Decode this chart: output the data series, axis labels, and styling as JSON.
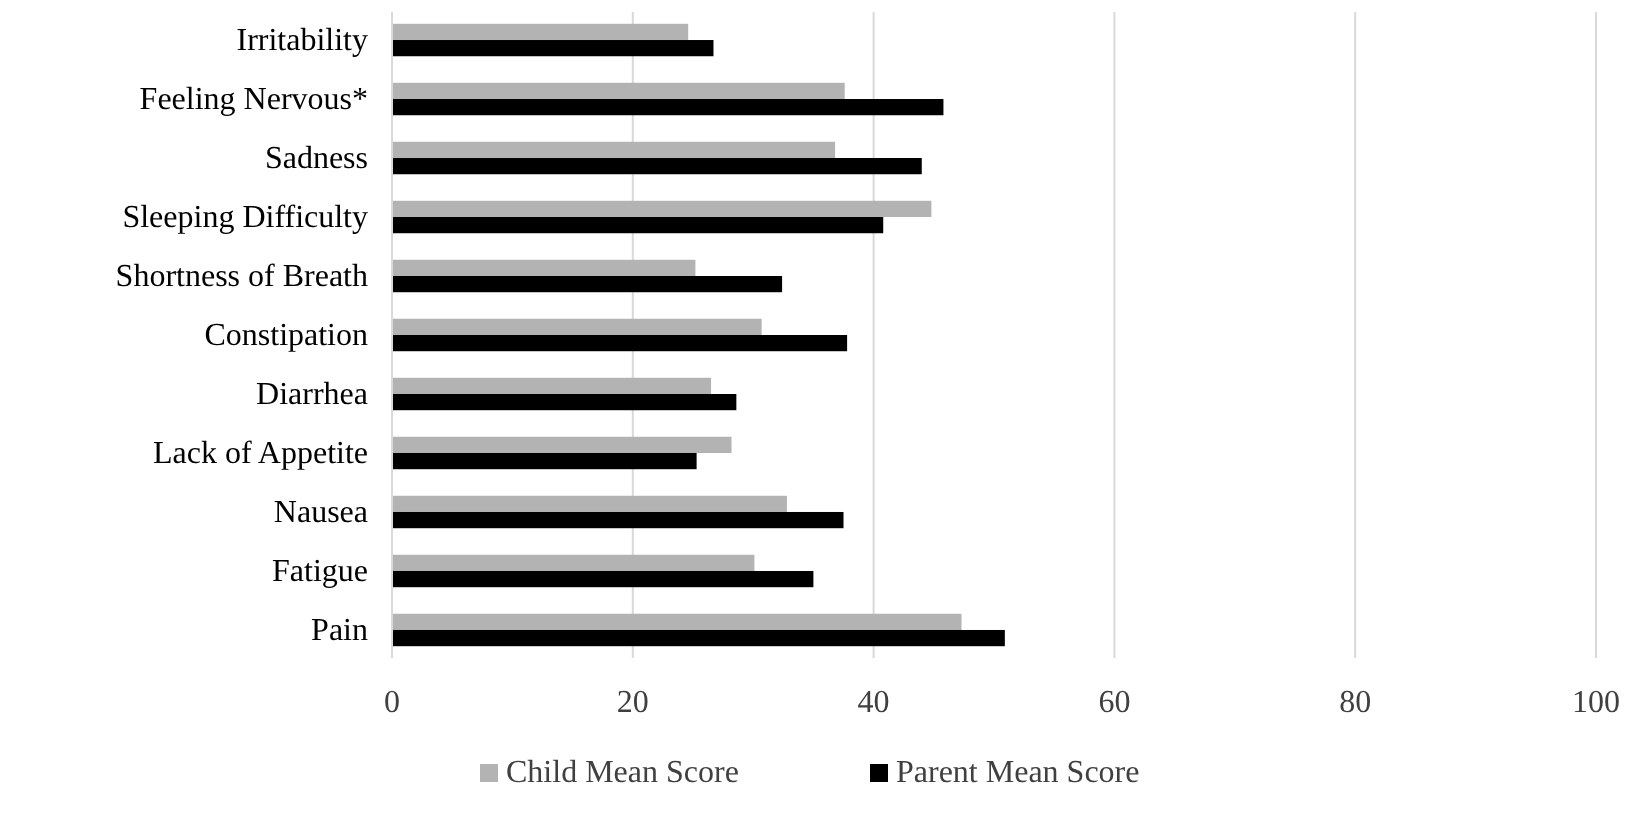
{
  "chart_data": {
    "type": "bar",
    "orientation": "horizontal",
    "categories": [
      "Irritability",
      "Feeling Nervous*",
      "Sadness",
      "Sleeping Difficulty",
      "Shortness of Breath",
      "Constipation",
      "Diarrhea",
      "Lack of Appetite",
      "Nausea",
      "Fatigue",
      "Pain"
    ],
    "series": [
      {
        "name": "Child Mean Score",
        "color": "#b3b3b3",
        "values": [
          24.6,
          37.6,
          36.8,
          44.8,
          25.2,
          30.7,
          26.5,
          28.2,
          32.8,
          30.1,
          47.3
        ]
      },
      {
        "name": "Parent Mean Score",
        "color": "#000000",
        "values": [
          26.7,
          45.8,
          44.0,
          40.8,
          32.4,
          37.8,
          28.6,
          25.3,
          37.5,
          35.0,
          50.9
        ]
      }
    ],
    "xlim": [
      0,
      100
    ],
    "xticks": [
      0,
      20,
      40,
      60,
      80,
      100
    ],
    "grid": "x",
    "legend": "bottom"
  }
}
